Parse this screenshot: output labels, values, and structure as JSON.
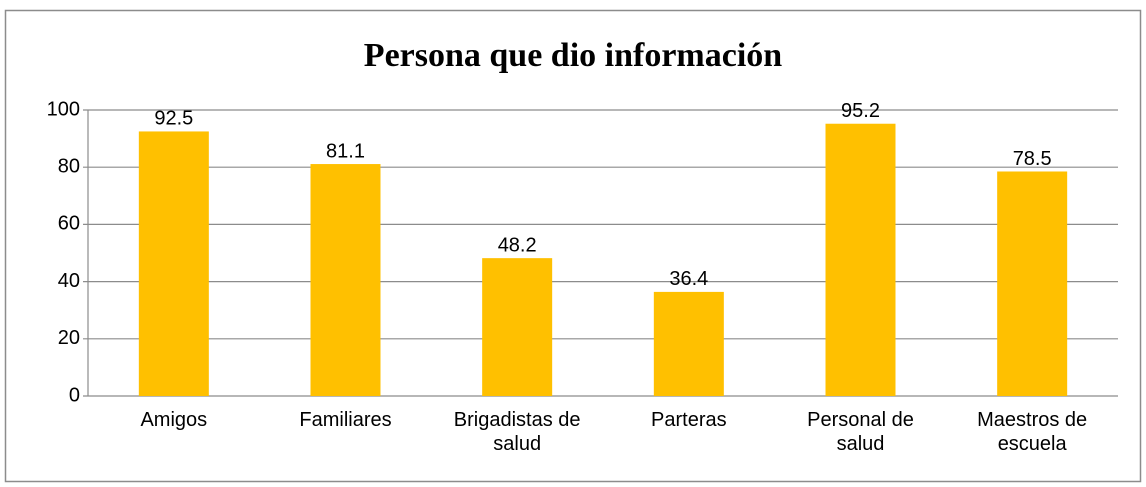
{
  "chart_data": {
    "type": "bar",
    "title": "Persona que dio información",
    "categories": [
      "Amigos",
      "Familiares",
      "Brigadistas de salud",
      "Parteras",
      "Personal de salud",
      "Maestros de escuela"
    ],
    "values": [
      92.5,
      81.1,
      48.2,
      36.4,
      95.2,
      78.5
    ],
    "color": "#ffc000",
    "ylim": [
      0,
      100
    ],
    "yticks": [
      0,
      20,
      40,
      60,
      80,
      100
    ],
    "grid": true
  }
}
